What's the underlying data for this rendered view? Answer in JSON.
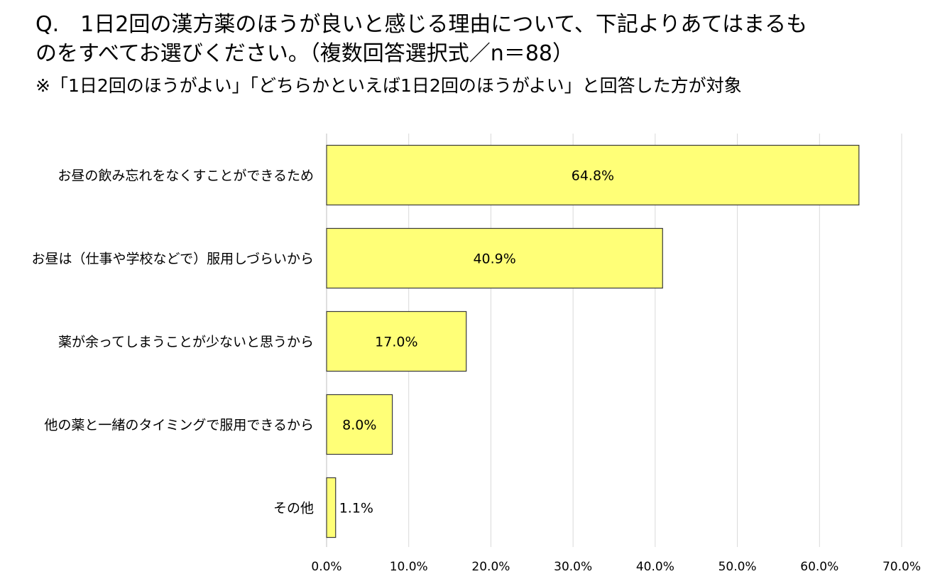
{
  "question": {
    "line1": "Q.　1日2回の漢方薬のほうが良いと感じる理由について、下記よりあてはまるも",
    "line2": "のをすべてお選びください。（複数回答選択式／n＝88）",
    "note": "※「1日2回のほうがよい」「どちらかといえば1日2回のほうがよい」と回答した方が対象"
  },
  "colors": {
    "bar_fill": "#FFFF77",
    "bar_stroke": "#3a3a3a",
    "grid": "#d9d9d9"
  },
  "chart_data": {
    "type": "bar",
    "orientation": "horizontal",
    "categories": [
      "お昼の飲み忘れをなくすことができるため",
      "お昼は（仕事や学校などで）服用しづらいから",
      "薬が余ってしまうことが少ないと思うから",
      "他の薬と一緒のタイミングで服用できるから",
      "その他"
    ],
    "values": [
      64.8,
      40.9,
      17.0,
      8.0,
      1.1
    ],
    "value_labels": [
      "64.8%",
      "40.9%",
      "17.0%",
      "8.0%",
      "1.1%"
    ],
    "xlim": [
      0,
      70
    ],
    "x_ticks": [
      0,
      10,
      20,
      30,
      40,
      50,
      60,
      70
    ],
    "x_tick_labels": [
      "0.0%",
      "10.0%",
      "20.0%",
      "30.0%",
      "40.0%",
      "50.0%",
      "60.0%",
      "70.0%"
    ],
    "grid": true,
    "legend": "none"
  }
}
